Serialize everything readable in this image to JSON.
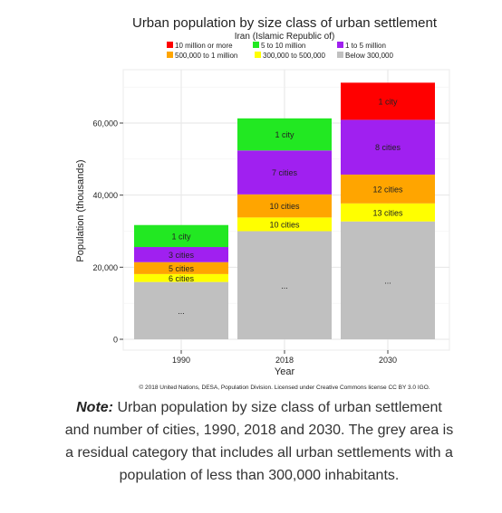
{
  "chart_data": {
    "type": "bar",
    "stacked": true,
    "title": "Urban population by size class of urban settlement",
    "subtitle": "Iran (Islamic Republic of)",
    "xlabel": "Year",
    "ylabel": "Population (thousands)",
    "categories": [
      "1990",
      "2018",
      "2030"
    ],
    "ylim": [
      0,
      72000
    ],
    "yticks": [
      0,
      20000,
      40000,
      60000
    ],
    "ytick_labels": [
      "0",
      "20,000",
      "40,000",
      "60,000"
    ],
    "grid": true,
    "legend_position": "top",
    "series": [
      {
        "name": "Below 300,000",
        "color": "#c0c0c0",
        "values": [
          15900,
          30000,
          32700
        ],
        "labels": [
          "...",
          "...",
          "..."
        ]
      },
      {
        "name": "300,000 to 500,000",
        "color": "#ffff00",
        "values": [
          2200,
          3800,
          5000
        ],
        "labels": [
          "6 cities",
          "10 cities",
          "13 cities"
        ]
      },
      {
        "name": "500,000 to 1 million",
        "color": "#ffa500",
        "values": [
          3300,
          6400,
          8000
        ],
        "labels": [
          "5 cities",
          "10 cities",
          "12 cities"
        ]
      },
      {
        "name": "1 to 5 million",
        "color": "#a020f0",
        "values": [
          4200,
          12200,
          15200
        ],
        "labels": [
          "3 cities",
          "7 cities",
          "8 cities"
        ]
      },
      {
        "name": "5 to 10 million",
        "color": "#22e822",
        "values": [
          6100,
          8900,
          0
        ],
        "labels": [
          "1 city",
          "1 city",
          ""
        ]
      },
      {
        "name": "10 million or more",
        "color": "#ff0000",
        "values": [
          0,
          0,
          10300
        ],
        "labels": [
          "",
          "",
          "1 city"
        ]
      }
    ],
    "legend_rows": [
      [
        "10 million or more",
        "5 to 10 million",
        "1 to 5 million"
      ],
      [
        "500,000 to 1 million",
        "300,000 to 500,000",
        "Below 300,000"
      ]
    ],
    "credit": "© 2018 United Nations, DESA, Population Division. Licensed under Creative Commons license CC BY 3.0 IGO."
  },
  "caption": {
    "note_label": "Note:",
    "text": " Urban population by size class of urban settlement and number of cities, 1990, 2018 and 2030. The grey area is a residual category that includes all urban settlements with a population of less than 300,000 inhabitants."
  }
}
